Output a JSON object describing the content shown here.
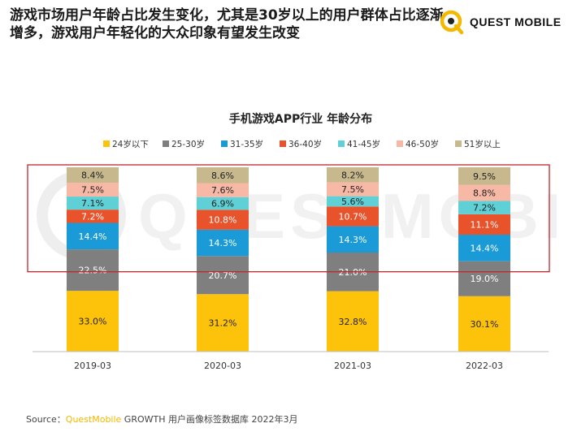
{
  "headline": "游戏市场用户年龄占比发生变化，尤其是30岁以上的用户群体占比逐渐增多，游戏用户年轻化的大众印象有望发生改变",
  "brand": {
    "name": "QUEST MOBILE",
    "logo_icon": "quest-mobile-logo-icon",
    "accent_color": "#f5b800"
  },
  "watermark": {
    "text": "QUESTMOBILE"
  },
  "source": {
    "prefix": "Source：",
    "brand": "QuestMobile",
    "rest": " GROWTH 用户画像标签数据库 2022年3月"
  },
  "highlight_box": {
    "color": "#c0262d",
    "covers_series": [
      "31-35岁",
      "36-40岁",
      "41-45岁",
      "46-50岁",
      "51岁以上"
    ]
  },
  "chart_data": {
    "type": "bar",
    "stacked": true,
    "title": "手机游戏APP行业 年龄分布",
    "legend_position": "top",
    "grid": false,
    "value_unit": "%",
    "categories": [
      "2019-03",
      "2020-03",
      "2021-03",
      "2022-03"
    ],
    "series": [
      {
        "name": "24岁以下",
        "color": "#fdc30a",
        "values": [
          33.0,
          31.2,
          32.8,
          30.1
        ]
      },
      {
        "name": "25-30岁",
        "color": "#7f7f7f",
        "values": [
          22.5,
          20.7,
          21.0,
          19.0
        ]
      },
      {
        "name": "31-35岁",
        "color": "#1a9ad6",
        "values": [
          14.4,
          14.3,
          14.3,
          14.4
        ]
      },
      {
        "name": "36-40岁",
        "color": "#e8532b",
        "values": [
          7.2,
          10.8,
          10.7,
          11.1
        ]
      },
      {
        "name": "41-45岁",
        "color": "#5fd0d5",
        "values": [
          7.1,
          6.9,
          5.6,
          7.2
        ]
      },
      {
        "name": "46-50岁",
        "color": "#f8b8a6",
        "values": [
          7.5,
          7.6,
          7.5,
          8.8
        ]
      },
      {
        "name": "51岁以上",
        "color": "#c8b88e",
        "values": [
          8.4,
          8.6,
          8.2,
          9.5
        ]
      }
    ]
  }
}
